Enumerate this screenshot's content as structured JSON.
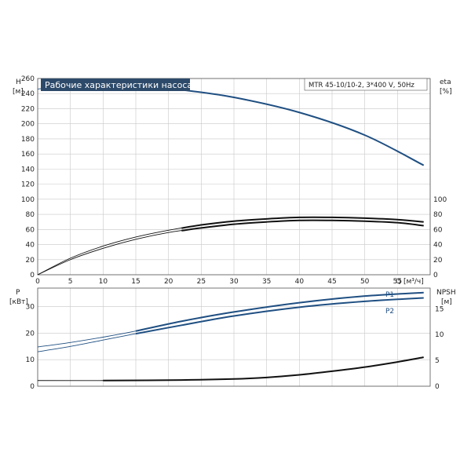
{
  "chart_data": {
    "type": "line",
    "title": "Рабочие характеристики насоса",
    "pump_label": "MTR 45-10/10-2, 3*400 V, 50Hz",
    "colors": {
      "blue": "#1f4f82",
      "black": "#111111",
      "title_bg": "#2d4a6a"
    },
    "xlabel": "Q [м³/ч]",
    "x_ticks": [
      "0",
      "5",
      "10",
      "15",
      "20",
      "25",
      "30",
      "35",
      "40",
      "45",
      "50",
      "55"
    ],
    "xlim": [
      0,
      60
    ],
    "upper": {
      "y_left_label_1": "H",
      "y_left_label_2": "[м]",
      "y_right_label_1": "eta",
      "y_right_label_2": "[%]",
      "y_left_ticks": [
        "0",
        "20",
        "40",
        "60",
        "80",
        "100",
        "120",
        "140",
        "160",
        "180",
        "200",
        "220",
        "240",
        "260"
      ],
      "y_right_ticks": [
        "0",
        "20",
        "40",
        "60",
        "80",
        "100"
      ],
      "ylim": [
        0,
        260
      ],
      "series": [
        {
          "id": "H",
          "color": "blue",
          "x": [
            0,
            5,
            10,
            15,
            22,
            30,
            40,
            50,
            59
          ],
          "y": [
            246,
            251,
            252,
            251,
            245,
            235,
            215,
            185,
            145
          ]
        },
        {
          "id": "eta1",
          "color": "black",
          "x": [
            0,
            5,
            10,
            15,
            20,
            25,
            30,
            35,
            40,
            45,
            50,
            55,
            59
          ],
          "y": [
            0,
            22,
            38,
            50,
            59,
            66,
            71,
            74,
            76,
            76,
            75,
            73,
            70
          ]
        },
        {
          "id": "eta2",
          "color": "black",
          "x": [
            0,
            5,
            10,
            15,
            20,
            25,
            30,
            35,
            40,
            45,
            50,
            55,
            59
          ],
          "y": [
            0,
            20,
            35,
            47,
            56,
            62,
            67,
            70,
            72,
            72,
            71,
            69,
            65
          ]
        }
      ]
    },
    "lower": {
      "y_left_label_1": "P",
      "y_left_label_2": "[кВт]",
      "y_right_label_1": "NPSH",
      "y_right_label_2": "[м]",
      "y_left_ticks": [
        "0",
        "10",
        "20",
        "30"
      ],
      "y_right_ticks": [
        "0",
        "5",
        "10",
        "15"
      ],
      "ylim": [
        0,
        37
      ],
      "npsh_lim": [
        0,
        19
      ],
      "series": [
        {
          "name": "P1",
          "color": "blue",
          "x": [
            0,
            5,
            10,
            15,
            22,
            30,
            40,
            50,
            59
          ],
          "y": [
            14.8,
            16.5,
            18.5,
            20.8,
            24.5,
            28,
            31.5,
            34,
            35.3
          ]
        },
        {
          "name": "P2",
          "color": "blue",
          "x": [
            0,
            5,
            10,
            15,
            22,
            30,
            40,
            50,
            59
          ],
          "y": [
            13,
            15,
            17.4,
            19.8,
            23,
            26.5,
            29.8,
            32,
            33.3
          ]
        },
        {
          "id": "NPSH",
          "color": "black",
          "axis": "right",
          "x": [
            0,
            10,
            22,
            30,
            35,
            40,
            45,
            50,
            55,
            59
          ],
          "y": [
            1.1,
            1.1,
            1.2,
            1.4,
            1.7,
            2.2,
            2.9,
            3.7,
            4.7,
            5.6
          ]
        }
      ]
    }
  }
}
